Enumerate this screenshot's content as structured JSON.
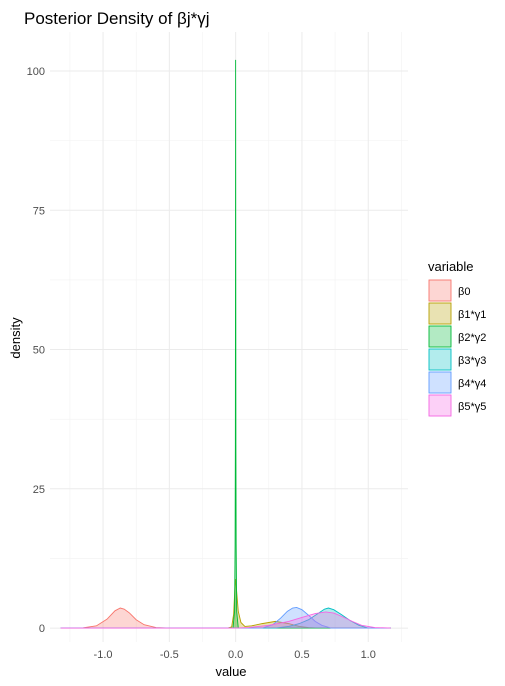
{
  "chart_data": {
    "type": "area",
    "title": "Posterior Density of βj*γj",
    "xlabel": "value",
    "ylabel": "density",
    "xlim": [
      -1.4,
      1.3
    ],
    "ylim": [
      -2.5,
      107
    ],
    "xticks": [
      -1.0,
      -0.5,
      0.0,
      0.5,
      1.0
    ],
    "xtick_labels": [
      "-1.0",
      "-0.5",
      "0.0",
      "0.5",
      "1.0"
    ],
    "yticks": [
      0,
      25,
      50,
      75,
      100
    ],
    "ytick_labels": [
      "0",
      "25",
      "50",
      "75",
      "100"
    ],
    "grid": true,
    "legend": {
      "title": "variable",
      "position": "right"
    },
    "series": [
      {
        "name": "β0",
        "fill": "#F8766D",
        "line": "#F8766D",
        "x": [
          -1.32,
          -1.15,
          -1.05,
          -0.97,
          -0.91,
          -0.87,
          -0.84,
          -0.8,
          -0.75,
          -0.69,
          -0.6,
          -0.5,
          0.0,
          1.17
        ],
        "y": [
          0,
          0.05,
          0.4,
          1.6,
          3.1,
          3.6,
          3.4,
          2.7,
          1.5,
          0.6,
          0.1,
          0,
          0,
          0
        ]
      },
      {
        "name": "β1*γ1",
        "fill": "#B79F00",
        "line": "#B79F00",
        "x": [
          -1.32,
          -0.06,
          -0.03,
          -0.015,
          -0.005,
          0.0,
          0.008,
          0.02,
          0.04,
          0.07,
          0.12,
          0.2,
          0.3,
          0.4,
          0.48,
          0.55,
          0.62,
          1.17
        ],
        "y": [
          0,
          0,
          0.2,
          2.5,
          7.5,
          8.8,
          6.5,
          3.0,
          1.0,
          0.3,
          0.4,
          0.8,
          1.2,
          0.8,
          0.3,
          0.1,
          0,
          0
        ]
      },
      {
        "name": "β2*γ2",
        "fill": "#00BA38",
        "line": "#00BA38",
        "x": [
          -1.32,
          -0.02,
          -0.008,
          -0.004,
          -0.002,
          -0.001,
          0.0,
          0.001,
          0.002,
          0.004,
          0.008,
          0.02,
          1.17
        ],
        "y": [
          0,
          0,
          3.0,
          15.0,
          33.0,
          64.0,
          102.0,
          64.0,
          33.0,
          15.0,
          3.0,
          0,
          0
        ]
      },
      {
        "name": "β3*γ3",
        "fill": "#00BFC4",
        "line": "#00BFC4",
        "x": [
          -1.32,
          0.3,
          0.4,
          0.48,
          0.55,
          0.62,
          0.67,
          0.7,
          0.74,
          0.8,
          0.86,
          0.93,
          1.0,
          1.17
        ],
        "y": [
          0,
          0,
          0.3,
          0.8,
          1.5,
          2.6,
          3.4,
          3.6,
          3.3,
          2.4,
          1.4,
          0.5,
          0,
          0
        ]
      },
      {
        "name": "β4*γ4",
        "fill": "#619CFF",
        "line": "#619CFF",
        "x": [
          -1.32,
          0.2,
          0.28,
          0.34,
          0.39,
          0.43,
          0.46,
          0.5,
          0.55,
          0.6,
          0.65,
          0.72,
          1.17
        ],
        "y": [
          0,
          0,
          0.6,
          1.8,
          3.0,
          3.6,
          3.7,
          3.3,
          2.3,
          1.2,
          0.5,
          0,
          0
        ]
      },
      {
        "name": "β5*γ5",
        "fill": "#F564E3",
        "line": "#F564E3",
        "x": [
          -1.32,
          0.0,
          0.1,
          0.25,
          0.4,
          0.5,
          0.6,
          0.68,
          0.74,
          0.8,
          0.88,
          0.95,
          1.05,
          1.17
        ],
        "y": [
          0,
          0,
          0.1,
          0.5,
          1.2,
          1.9,
          2.6,
          2.9,
          2.7,
          2.1,
          1.2,
          0.5,
          0.1,
          0
        ]
      }
    ]
  }
}
